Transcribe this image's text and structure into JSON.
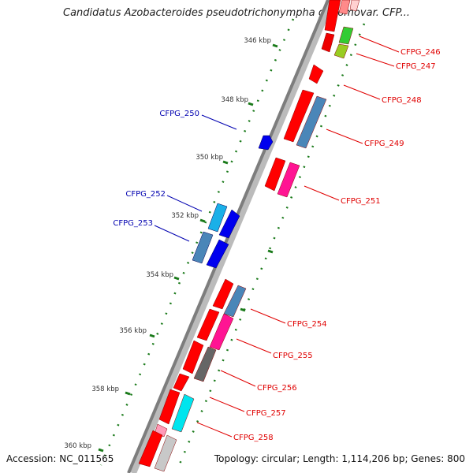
{
  "title": "Candidatus Azobacteroides pseudotrichonympha genomovar. CFP...",
  "footer": {
    "accession": "Accession: NC_011565",
    "topology": "Topology: circular; Length: 1,114,206 bp; Genes: 800"
  },
  "axis_labels": [
    "346 kbp",
    "348 kbp",
    "350 kbp",
    "352 kbp",
    "354 kbp",
    "356 kbp",
    "358 kbp",
    "360 kbp"
  ],
  "genes": [
    {
      "label": "CFPG_246",
      "strand": "forward"
    },
    {
      "label": "CFPG_247",
      "strand": "forward"
    },
    {
      "label": "CFPG_248",
      "strand": "forward"
    },
    {
      "label": "CFPG_249",
      "strand": "forward"
    },
    {
      "label": "CFPG_250",
      "strand": "reverse"
    },
    {
      "label": "CFPG_251",
      "strand": "forward"
    },
    {
      "label": "CFPG_252",
      "strand": "reverse"
    },
    {
      "label": "CFPG_253",
      "strand": "reverse"
    },
    {
      "label": "CFPG_254",
      "strand": "forward"
    },
    {
      "label": "CFPG_255",
      "strand": "forward"
    },
    {
      "label": "CFPG_256",
      "strand": "forward"
    },
    {
      "label": "CFPG_257",
      "strand": "forward"
    },
    {
      "label": "CFPG_258",
      "strand": "forward"
    }
  ],
  "colors": {
    "forward_label": "#e00000",
    "reverse_label": "#0000b0",
    "backbone": "#808080",
    "tick": "#1a7a1a"
  }
}
